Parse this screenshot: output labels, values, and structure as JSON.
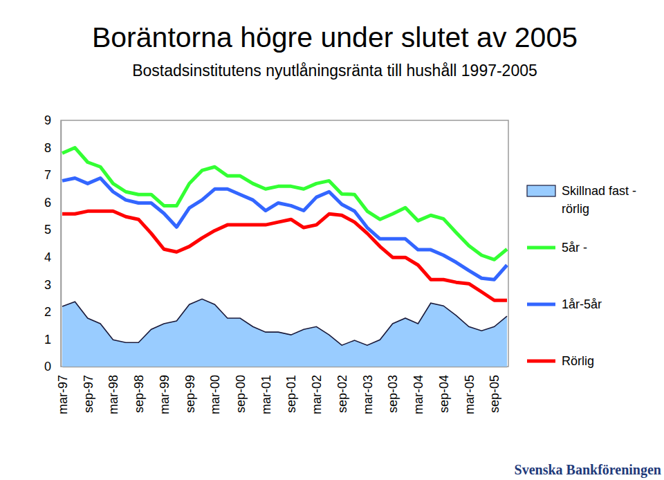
{
  "chart_data": {
    "type": "line",
    "title": "Boräntorna högre under slutet av 2005",
    "subtitle": "Bostadsinstitutens nyutlåningsränta till hushåll 1997-2005",
    "source": "Svenska Bankföreningen",
    "categories": [
      "mar-97",
      null,
      "sep-97",
      null,
      "mar-98",
      null,
      "sep-98",
      null,
      "mar-99",
      null,
      "sep-99",
      null,
      "mar-00",
      null,
      "sep-00",
      null,
      "mar-01",
      null,
      "sep-01",
      null,
      "mar-02",
      null,
      "sep-02",
      null,
      "mar-03",
      null,
      "sep-03",
      null,
      "mar-04",
      null,
      "sep-04",
      null,
      "mar-05",
      null,
      "sep-05",
      null
    ],
    "ylim": [
      0,
      9
    ],
    "yticks": [
      0,
      1,
      2,
      3,
      4,
      5,
      6,
      7,
      8,
      9
    ],
    "grid": false,
    "legend": "right",
    "series": [
      {
        "name": "Skillnad fast - rörlig",
        "type": "area",
        "color": "#99ccff",
        "values": [
          2.2,
          2.37,
          1.77,
          1.57,
          0.98,
          0.88,
          0.88,
          1.36,
          1.57,
          1.67,
          2.27,
          2.47,
          2.27,
          1.77,
          1.77,
          1.46,
          1.26,
          1.26,
          1.16,
          1.36,
          1.46,
          1.16,
          0.78,
          0.96,
          0.78,
          0.98,
          1.57,
          1.77,
          1.57,
          2.32,
          2.22,
          1.87,
          1.46,
          1.31,
          1.46,
          1.84
        ]
      },
      {
        "name": "5år -",
        "type": "line",
        "color": "#33ff33",
        "line_style": "solid",
        "values": [
          7.8,
          8.0,
          7.47,
          7.3,
          6.69,
          6.39,
          6.29,
          6.29,
          5.88,
          5.88,
          6.69,
          7.17,
          7.3,
          6.97,
          6.97,
          6.69,
          6.49,
          6.59,
          6.59,
          6.49,
          6.69,
          6.79,
          6.31,
          6.29,
          5.68,
          5.38,
          5.58,
          5.81,
          5.33,
          5.53,
          5.4,
          4.9,
          4.42,
          4.07,
          3.91,
          4.29
        ]
      },
      {
        "name": "1år-5år",
        "type": "line",
        "color": "#3366ff",
        "line_style": "solid",
        "values": [
          6.79,
          6.89,
          6.69,
          6.89,
          6.39,
          6.09,
          5.98,
          5.98,
          5.6,
          5.1,
          5.8,
          6.09,
          6.49,
          6.49,
          6.29,
          6.09,
          5.7,
          5.98,
          5.88,
          5.7,
          6.19,
          6.39,
          5.93,
          5.68,
          5.08,
          4.67,
          4.67,
          4.67,
          4.27,
          4.27,
          4.07,
          3.81,
          3.51,
          3.23,
          3.18,
          3.71
        ]
      },
      {
        "name": "Rörlig",
        "type": "line",
        "color": "#ff0000",
        "line_style": "solid",
        "values": [
          5.58,
          5.58,
          5.68,
          5.68,
          5.68,
          5.48,
          5.38,
          4.87,
          4.29,
          4.19,
          4.39,
          4.7,
          4.97,
          5.18,
          5.18,
          5.18,
          5.18,
          5.28,
          5.38,
          5.08,
          5.18,
          5.58,
          5.53,
          5.28,
          4.87,
          4.39,
          3.99,
          3.99,
          3.71,
          3.18,
          3.18,
          3.08,
          3.03,
          2.73,
          2.42,
          2.42
        ]
      }
    ]
  }
}
